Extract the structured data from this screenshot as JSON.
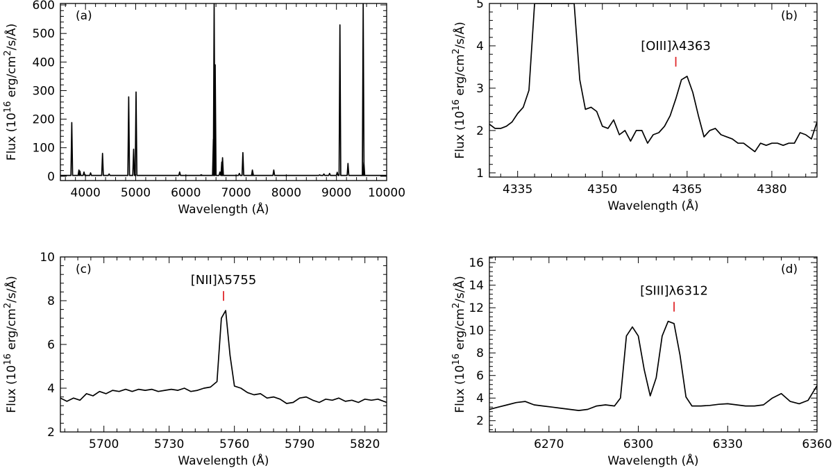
{
  "figure": {
    "ylabel_prefix": "Flux (10",
    "ylabel_exp": "16",
    "ylabel_mid": " erg/cm",
    "ylabel_exp2": "2",
    "ylabel_suffix": "/s/Å)",
    "xlabel": "Wavelength (Å)"
  },
  "colors": {
    "line": "#000000",
    "marker": "#e0262a"
  },
  "chart_data": [
    {
      "type": "line",
      "panel_label": "(a)",
      "xlabel": "Wavelength (Å)",
      "ylabel": "Flux (10^16 erg/cm^2/s/Å)",
      "xlim": [
        3500,
        10000
      ],
      "ylim": [
        -15,
        605
      ],
      "xticks": [
        4000,
        5000,
        6000,
        7000,
        8000,
        9000,
        10000
      ],
      "yticks": [
        0,
        100,
        200,
        300,
        400,
        500,
        600
      ],
      "continuum": 3,
      "lines": [
        [
          3727,
          188
        ],
        [
          3869,
          22
        ],
        [
          3889,
          18
        ],
        [
          3970,
          15
        ],
        [
          4101,
          12
        ],
        [
          4340,
          80
        ],
        [
          4471,
          8
        ],
        [
          4861,
          278
        ],
        [
          4959,
          95
        ],
        [
          5007,
          295
        ],
        [
          5876,
          15
        ],
        [
          6300,
          5
        ],
        [
          6312,
          5
        ],
        [
          6548,
          130
        ],
        [
          6563,
          605
        ],
        [
          6584,
          390
        ],
        [
          6678,
          15
        ],
        [
          6716,
          50
        ],
        [
          6731,
          65
        ],
        [
          7065,
          10
        ],
        [
          7136,
          83
        ],
        [
          7325,
          22
        ],
        [
          7330,
          18
        ],
        [
          7751,
          22
        ],
        [
          8665,
          5
        ],
        [
          8750,
          8
        ],
        [
          8863,
          10
        ],
        [
          9015,
          14
        ],
        [
          9069,
          530
        ],
        [
          9229,
          45
        ],
        [
          9532,
          605
        ],
        [
          9546,
          50
        ]
      ]
    },
    {
      "type": "line",
      "panel_label": "(b)",
      "xlabel": "Wavelength (Å)",
      "ylabel": "Flux (10^16 erg/cm^2/s/Å)",
      "xlim": [
        4330,
        4388
      ],
      "ylim": [
        0.9,
        5.0
      ],
      "xticks": [
        4335,
        4350,
        4365,
        4380
      ],
      "yticks": [
        1,
        2,
        3,
        4,
        5
      ],
      "annotation": {
        "text": "[OIII]λ4363",
        "x": 4363
      },
      "x": [
        4330,
        4331,
        4332,
        4333,
        4334,
        4335,
        4336,
        4337,
        4338,
        4339,
        4340,
        4341,
        4342,
        4343,
        4344,
        4345,
        4346,
        4347,
        4348,
        4349,
        4350,
        4351,
        4352,
        4353,
        4354,
        4355,
        4356,
        4357,
        4358,
        4359,
        4360,
        4361,
        4362,
        4363,
        4364,
        4365,
        4366,
        4367,
        4368,
        4369,
        4370,
        4371,
        4372,
        4373,
        4374,
        4375,
        4376,
        4377,
        4378,
        4379,
        4380,
        4381,
        4382,
        4383,
        4384,
        4385,
        4386,
        4387,
        4388
      ],
      "y": [
        2.15,
        2.05,
        2.05,
        2.1,
        2.2,
        2.4,
        2.55,
        2.95,
        5.0,
        5.0,
        5.0,
        5.0,
        5.0,
        5.0,
        5.0,
        5.0,
        3.2,
        2.5,
        2.55,
        2.45,
        2.1,
        2.05,
        2.25,
        1.9,
        2.0,
        1.75,
        2.0,
        2.0,
        1.7,
        1.9,
        1.95,
        2.1,
        2.35,
        2.75,
        3.2,
        3.28,
        2.9,
        2.35,
        1.85,
        2.0,
        2.05,
        1.9,
        1.85,
        1.8,
        1.7,
        1.7,
        1.6,
        1.5,
        1.7,
        1.65,
        1.7,
        1.7,
        1.65,
        1.7,
        1.7,
        1.95,
        1.9,
        1.8,
        2.2
      ]
    },
    {
      "type": "line",
      "panel_label": "(c)",
      "xlabel": "Wavelength (Å)",
      "ylabel": "Flux (10^16 erg/cm^2/s/Å)",
      "xlim": [
        5680,
        5830
      ],
      "ylim": [
        2.0,
        10.0
      ],
      "xticks": [
        5700,
        5730,
        5760,
        5790,
        5820
      ],
      "yticks": [
        2,
        4,
        6,
        8,
        10
      ],
      "annotation": {
        "text": "[NII]λ5755",
        "x": 5755
      },
      "x": [
        5680,
        5683,
        5686,
        5689,
        5692,
        5695,
        5698,
        5701,
        5704,
        5707,
        5710,
        5713,
        5716,
        5719,
        5722,
        5725,
        5728,
        5731,
        5734,
        5737,
        5740,
        5743,
        5746,
        5749,
        5752,
        5754,
        5756,
        5758,
        5760,
        5763,
        5766,
        5769,
        5772,
        5775,
        5778,
        5781,
        5784,
        5787,
        5790,
        5793,
        5796,
        5799,
        5802,
        5805,
        5808,
        5811,
        5814,
        5817,
        5820,
        5823,
        5826,
        5830
      ],
      "y": [
        3.55,
        3.4,
        3.55,
        3.45,
        3.75,
        3.65,
        3.85,
        3.75,
        3.9,
        3.85,
        3.95,
        3.85,
        3.95,
        3.9,
        3.95,
        3.85,
        3.9,
        3.95,
        3.9,
        4.0,
        3.85,
        3.9,
        4.0,
        4.05,
        4.3,
        7.2,
        7.55,
        5.5,
        4.1,
        4.0,
        3.8,
        3.7,
        3.75,
        3.55,
        3.6,
        3.5,
        3.3,
        3.35,
        3.55,
        3.6,
        3.45,
        3.35,
        3.5,
        3.45,
        3.55,
        3.4,
        3.45,
        3.35,
        3.5,
        3.45,
        3.5,
        3.35
      ]
    },
    {
      "type": "line",
      "panel_label": "(d)",
      "xlabel": "Wavelength (Å)",
      "ylabel": "Flux (10^16 erg/cm^2/s/Å)",
      "xlim": [
        6250,
        6360
      ],
      "ylim": [
        1.0,
        16.5
      ],
      "xticks": [
        6270,
        6300,
        6330,
        6360
      ],
      "yticks": [
        2,
        4,
        6,
        8,
        10,
        12,
        14,
        16
      ],
      "annotation": {
        "text": "[SIII]λ6312",
        "x": 6312
      },
      "x": [
        6250,
        6253,
        6256,
        6259,
        6262,
        6265,
        6268,
        6271,
        6274,
        6277,
        6280,
        6283,
        6286,
        6289,
        6292,
        6294,
        6296,
        6298,
        6300,
        6302,
        6304,
        6306,
        6308,
        6310,
        6312,
        6314,
        6316,
        6318,
        6321,
        6324,
        6327,
        6330,
        6333,
        6336,
        6339,
        6342,
        6345,
        6348,
        6351,
        6354,
        6357,
        6360
      ],
      "y": [
        3.0,
        3.2,
        3.4,
        3.6,
        3.7,
        3.4,
        3.3,
        3.2,
        3.1,
        3.0,
        2.9,
        3.0,
        3.3,
        3.4,
        3.3,
        4.0,
        9.5,
        10.3,
        9.5,
        6.5,
        4.2,
        5.8,
        9.5,
        10.8,
        10.6,
        7.8,
        4.1,
        3.3,
        3.3,
        3.35,
        3.45,
        3.5,
        3.4,
        3.3,
        3.3,
        3.4,
        4.0,
        4.4,
        3.7,
        3.5,
        3.8,
        5.1
      ]
    }
  ]
}
